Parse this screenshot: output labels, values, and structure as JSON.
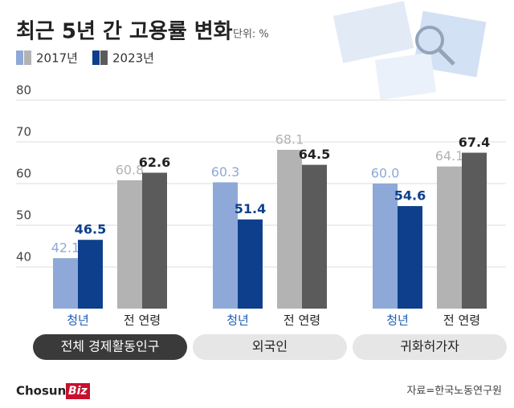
{
  "chart_data": {
    "type": "bar",
    "title": "최근 5년 간 고용률 변화",
    "unit": "단위: %",
    "categories": [
      "청년",
      "전 연령",
      "청년",
      "전 연령",
      "청년",
      "전 연령"
    ],
    "groups": [
      "전체 경제활동인구",
      "외국인",
      "귀화허가자"
    ],
    "series": [
      {
        "name": "2017년",
        "values": [
          42.1,
          60.8,
          60.3,
          68.1,
          60.0,
          64.1
        ],
        "value_labels": [
          "42.1",
          "60.8",
          "60.3",
          "68.1",
          "60.0",
          "64.1"
        ],
        "colors": [
          "#8ea9d8",
          "#b3b3b3",
          "#8ea9d8",
          "#b3b3b3",
          "#8ea9d8",
          "#b3b3b3"
        ]
      },
      {
        "name": "2023년",
        "values": [
          46.5,
          62.6,
          51.4,
          64.5,
          54.6,
          67.4
        ],
        "colors": [
          "#0e3f8c",
          "#5b5b5b",
          "#0e3f8c",
          "#5b5b5b",
          "#0e3f8c",
          "#5b5b5b"
        ]
      }
    ],
    "ylim": [
      30,
      80
    ],
    "yticks": [
      40,
      50,
      60,
      70,
      80
    ],
    "grid": true,
    "source": "자료=한국노동연구원",
    "logo": [
      "Chosun",
      "Biz"
    ]
  }
}
